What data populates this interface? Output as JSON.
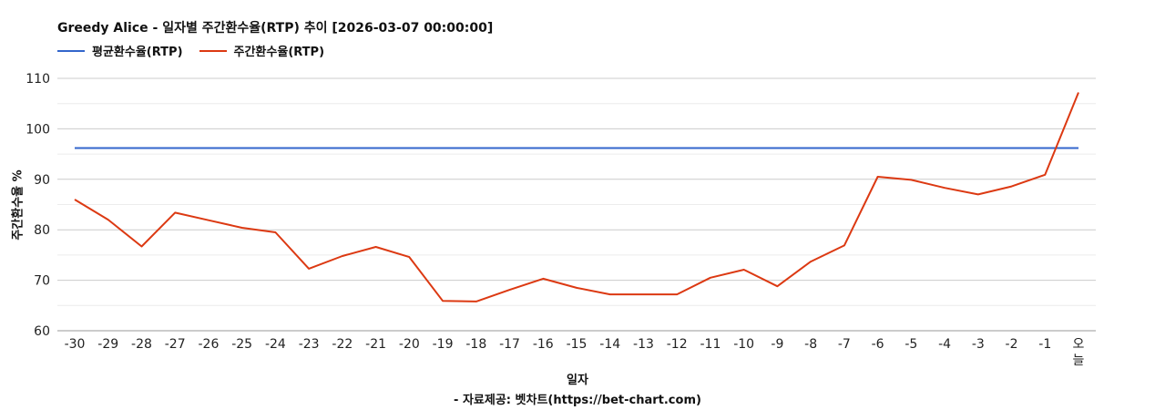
{
  "chart_data": {
    "type": "line",
    "title": "Greedy Alice - 일자별 주간환수율(RTP) 추이 [2026-03-07 00:00:00]",
    "xlabel": "일자",
    "ylabel": "주간환수율 %",
    "source": "- 자료제공: 벳차트(https://bet-chart.com)",
    "categories": [
      "-30",
      "-29",
      "-28",
      "-27",
      "-26",
      "-25",
      "-24",
      "-23",
      "-22",
      "-21",
      "-20",
      "-19",
      "-18",
      "-17",
      "-16",
      "-15",
      "-14",
      "-13",
      "-12",
      "-11",
      "-10",
      "-9",
      "-8",
      "-7",
      "-6",
      "-5",
      "-4",
      "-3",
      "-2",
      "-1",
      "오늘"
    ],
    "yticks": [
      60,
      70,
      80,
      90,
      100,
      110
    ],
    "ylim": [
      60,
      110
    ],
    "grid": true,
    "legend_position": "top-left",
    "series": [
      {
        "name": "평균환수율(RTP)",
        "color": "#3366cc",
        "values": [
          96.2,
          96.2,
          96.2,
          96.2,
          96.2,
          96.2,
          96.2,
          96.2,
          96.2,
          96.2,
          96.2,
          96.2,
          96.2,
          96.2,
          96.2,
          96.2,
          96.2,
          96.2,
          96.2,
          96.2,
          96.2,
          96.2,
          96.2,
          96.2,
          96.2,
          96.2,
          96.2,
          96.2,
          96.2,
          96.2,
          96.2
        ]
      },
      {
        "name": "주간환수율(RTP)",
        "color": "#dc3912",
        "values": [
          86.0,
          82.0,
          76.7,
          83.4,
          81.9,
          80.4,
          79.5,
          72.3,
          74.8,
          76.6,
          74.6,
          65.9,
          65.8,
          68.1,
          70.3,
          68.5,
          67.2,
          67.2,
          67.2,
          70.5,
          72.1,
          68.8,
          73.7,
          76.9,
          90.5,
          89.9,
          88.3,
          87.0,
          88.6,
          90.9,
          107.2
        ]
      }
    ]
  }
}
